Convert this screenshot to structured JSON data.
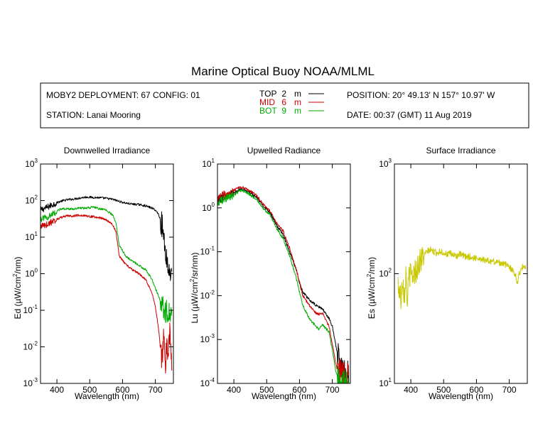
{
  "title": "Marine Optical Buoy NOAA/MLML",
  "info": {
    "deployment": "MOBY2 DEPLOYMENT: 67 CONFIG: 01",
    "station": "STATION: Lanai Mooring",
    "position": "POSITION: 20° 49.13' N   157° 10.97' W",
    "date": "DATE: 00:37 (GMT) 11 Aug 2019",
    "sensors": [
      {
        "label": "TOP",
        "depth": "2",
        "unit": "m",
        "color": "#000000"
      },
      {
        "label": "MID",
        "depth": "6",
        "unit": "m",
        "color": "#cc0000"
      },
      {
        "label": "BOT",
        "depth": "9",
        "unit": "m",
        "color": "#00aa00"
      }
    ]
  },
  "chart_data": [
    {
      "type": "line",
      "title": "Downwelled Irradiance",
      "xlabel": "Wavelength (nm)",
      "ylabel": {
        "base": "Ed  (µW/cm",
        "sup": "2",
        "rest": "/nm)"
      },
      "xlim": [
        350,
        755
      ],
      "ylim": [
        0.001,
        1000
      ],
      "xticks": [
        400,
        500,
        600,
        700
      ],
      "yticks": [
        {
          "value": 0.001,
          "base": "10",
          "exp": "-3"
        },
        {
          "value": 0.01,
          "base": "10",
          "exp": "-2"
        },
        {
          "value": 0.1,
          "base": "10",
          "exp": "-1"
        },
        {
          "value": 1,
          "base": "10",
          "exp": "0"
        },
        {
          "value": 10,
          "base": "10",
          "exp": "1"
        },
        {
          "value": 100,
          "base": "10",
          "exp": "2"
        },
        {
          "value": 1000,
          "base": "10",
          "exp": "3"
        }
      ],
      "series": [
        {
          "name": "TOP",
          "color": "#000000",
          "x": [
            350,
            370,
            390,
            410,
            430,
            450,
            470,
            490,
            510,
            530,
            550,
            570,
            590,
            610,
            630,
            650,
            670,
            690,
            700,
            710,
            720,
            730,
            740,
            750
          ],
          "y": [
            55,
            65,
            80,
            95,
            105,
            110,
            118,
            125,
            122,
            120,
            115,
            108,
            95,
            85,
            80,
            78,
            72,
            62,
            55,
            42,
            22,
            5,
            1.2,
            1.2
          ]
        },
        {
          "name": "MID",
          "color": "#cc0000",
          "x": [
            350,
            370,
            390,
            410,
            430,
            450,
            470,
            490,
            510,
            530,
            550,
            570,
            580,
            590,
            610,
            630,
            650,
            670,
            690,
            700,
            710,
            715,
            720,
            725,
            730,
            735,
            740,
            745,
            750
          ],
          "y": [
            20,
            22,
            28,
            34,
            38,
            38,
            40,
            38,
            36,
            34,
            30,
            22,
            14,
            3,
            1.8,
            1.3,
            1.0,
            0.7,
            0.3,
            0.12,
            0.03,
            0.01,
            0.004,
            0.02,
            0.003,
            0.01,
            0.008,
            0.03,
            0.005
          ]
        },
        {
          "name": "BOT",
          "color": "#00aa00",
          "x": [
            350,
            370,
            390,
            410,
            430,
            450,
            470,
            490,
            510,
            530,
            550,
            570,
            580,
            590,
            610,
            630,
            650,
            670,
            690,
            700,
            710,
            720,
            730,
            740,
            750
          ],
          "y": [
            30,
            35,
            45,
            58,
            60,
            58,
            62,
            63,
            66,
            60,
            55,
            40,
            25,
            6,
            3,
            2.2,
            1.7,
            1.3,
            0.7,
            0.4,
            0.25,
            0.12,
            0.1,
            0.09,
            0.1
          ]
        }
      ]
    },
    {
      "type": "line",
      "title": "Upwelled Radiance",
      "xlabel": "Wavelength (nm)",
      "ylabel": {
        "base": "Lu  (µW/cm",
        "sup": "2",
        "rest": "/sr/nm)"
      },
      "xlim": [
        350,
        755
      ],
      "ylim": [
        0.0001,
        10
      ],
      "xticks": [
        400,
        500,
        600,
        700
      ],
      "yticks": [
        {
          "value": 0.0001,
          "base": "10",
          "exp": "-4"
        },
        {
          "value": 0.001,
          "base": "10",
          "exp": "-3"
        },
        {
          "value": 0.01,
          "base": "10",
          "exp": "-2"
        },
        {
          "value": 0.1,
          "base": "10",
          "exp": "-1"
        },
        {
          "value": 1,
          "base": "10",
          "exp": "0"
        },
        {
          "value": 10,
          "base": "10",
          "exp": "1"
        }
      ],
      "series": [
        {
          "name": "TOP",
          "color": "#000000",
          "x": [
            350,
            370,
            390,
            410,
            420,
            430,
            450,
            470,
            490,
            510,
            530,
            550,
            570,
            590,
            600,
            610,
            630,
            650,
            670,
            690,
            700,
            710,
            720,
            730,
            740,
            750
          ],
          "y": [
            1.5,
            1.8,
            2.0,
            2.4,
            2.7,
            2.6,
            2.2,
            1.7,
            1.1,
            0.8,
            0.4,
            0.25,
            0.1,
            0.04,
            0.02,
            0.012,
            0.008,
            0.006,
            0.005,
            0.003,
            0.002,
            0.0008,
            0.0003,
            0.0002,
            0.00015,
            0.0002
          ]
        },
        {
          "name": "MID",
          "color": "#cc0000",
          "x": [
            350,
            370,
            390,
            410,
            420,
            430,
            450,
            470,
            490,
            510,
            530,
            550,
            570,
            590,
            600,
            610,
            630,
            650,
            660,
            670,
            690,
            700,
            710,
            720,
            730,
            740,
            750
          ],
          "y": [
            1.6,
            2.0,
            2.2,
            2.8,
            3.0,
            2.9,
            2.4,
            1.9,
            1.2,
            0.85,
            0.45,
            0.3,
            0.12,
            0.04,
            0.02,
            0.01,
            0.006,
            0.004,
            0.0038,
            0.004,
            0.002,
            0.0008,
            0.0003,
            0.00015,
            0.0002,
            0.0001,
            0.00015
          ]
        },
        {
          "name": "BOT",
          "color": "#00aa00",
          "x": [
            350,
            370,
            390,
            410,
            420,
            430,
            450,
            470,
            490,
            510,
            530,
            550,
            570,
            590,
            600,
            610,
            630,
            650,
            660,
            670,
            690,
            700,
            710,
            720,
            730,
            740,
            750
          ],
          "y": [
            1.3,
            1.6,
            1.8,
            2.2,
            2.5,
            2.4,
            2.0,
            1.5,
            0.95,
            0.7,
            0.35,
            0.2,
            0.08,
            0.025,
            0.012,
            0.006,
            0.003,
            0.002,
            0.0017,
            0.0022,
            0.0015,
            0.0006,
            0.0002,
            0.00012,
            0.0001,
            0.00012,
            0.0001
          ]
        }
      ]
    },
    {
      "type": "line",
      "title": "Surface Irradiance",
      "xlabel": "Wavelength (nm)",
      "ylabel": {
        "base": "Es  (µW/cm",
        "sup": "2",
        "rest": "/nm)"
      },
      "xlim": [
        350,
        755
      ],
      "ylim": [
        10,
        1000
      ],
      "xticks": [
        400,
        500,
        600,
        700
      ],
      "yticks": [
        {
          "value": 10,
          "base": "10",
          "exp": "1"
        },
        {
          "value": 100,
          "base": "10",
          "exp": "2"
        },
        {
          "value": 1000,
          "base": "10",
          "exp": "3"
        }
      ],
      "series": [
        {
          "name": "Es",
          "color": "#c8c800",
          "x": [
            360,
            365,
            370,
            375,
            380,
            385,
            390,
            395,
            400,
            410,
            420,
            430,
            440,
            450,
            460,
            470,
            480,
            490,
            500,
            510,
            520,
            530,
            540,
            550,
            560,
            570,
            580,
            590,
            600,
            620,
            640,
            660,
            680,
            690,
            700,
            710,
            720,
            725,
            730,
            740,
            750
          ],
          "y": [
            85,
            70,
            60,
            95,
            65,
            100,
            55,
            105,
            95,
            100,
            115,
            135,
            145,
            160,
            165,
            158,
            155,
            160,
            155,
            150,
            152,
            148,
            145,
            150,
            145,
            142,
            143,
            138,
            140,
            135,
            130,
            128,
            125,
            120,
            118,
            105,
            98,
            80,
            100,
            115,
            118
          ]
        }
      ]
    }
  ]
}
